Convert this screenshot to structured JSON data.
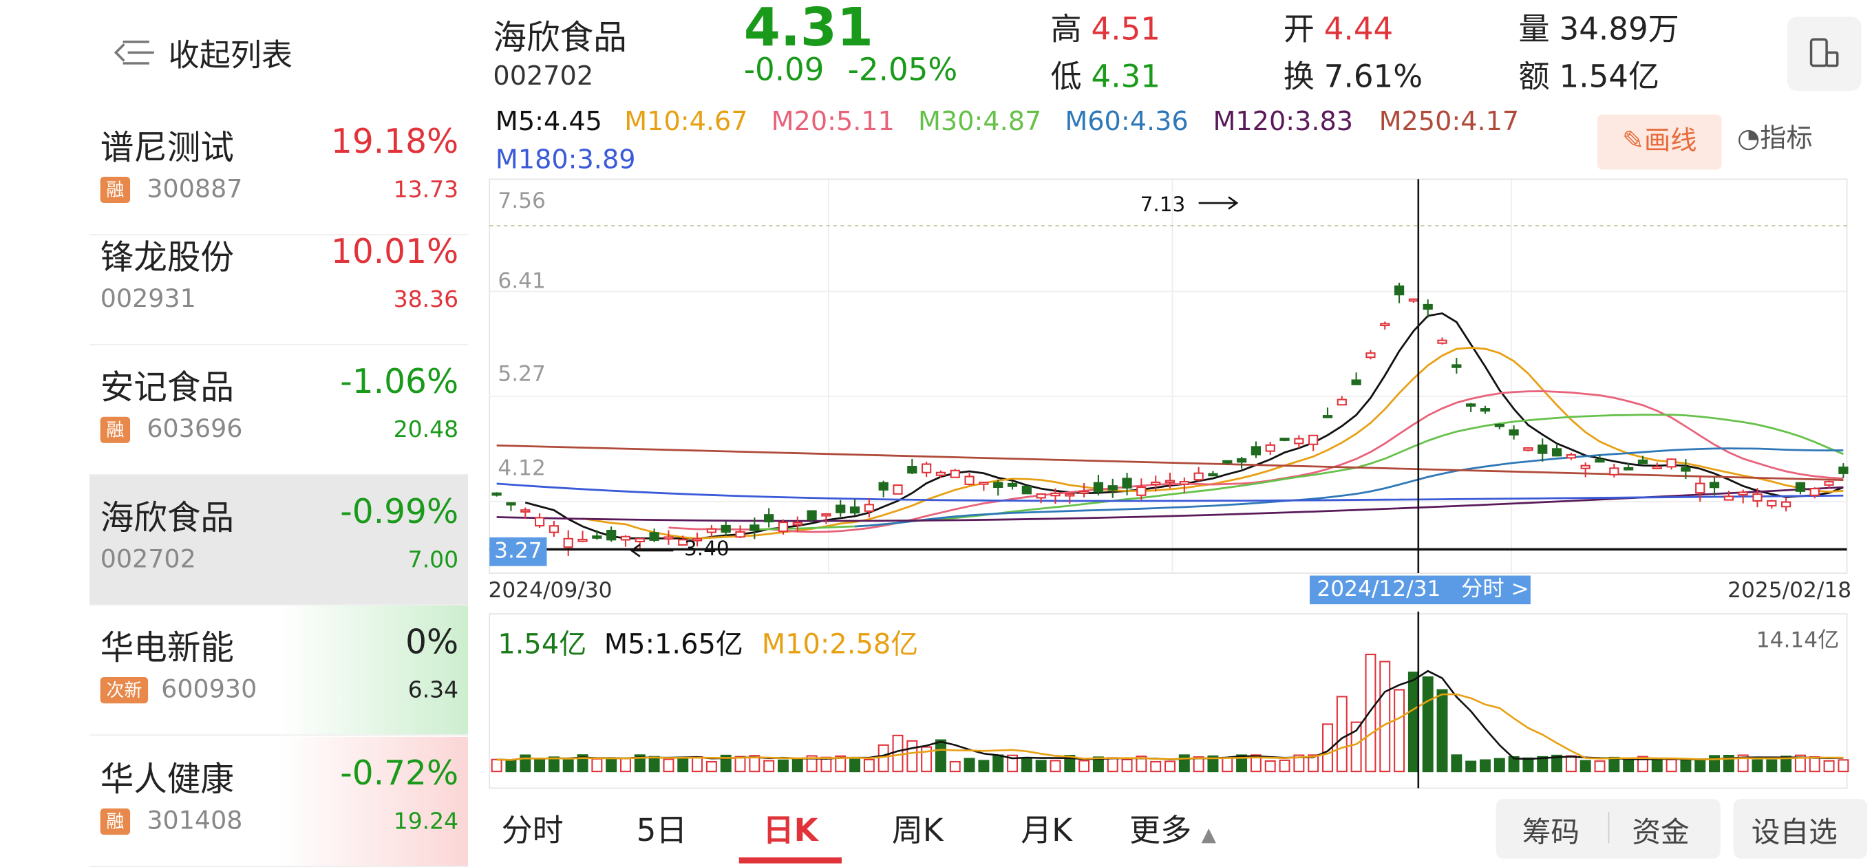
{
  "sidebar": {
    "collapse_label": "收起列表",
    "items": [
      {
        "name": "谱尼测试",
        "pct": "19.18%",
        "badge": "融",
        "code": "300887",
        "price": "13.73",
        "dir": "up",
        "bg": "none"
      },
      {
        "name": "锋龙股份",
        "pct": "10.01%",
        "badge": "",
        "code": "002931",
        "price": "38.36",
        "dir": "up",
        "bg": "none"
      },
      {
        "name": "安记食品",
        "pct": "-1.06%",
        "badge": "融",
        "code": "603696",
        "price": "20.48",
        "dir": "dn",
        "bg": "none"
      },
      {
        "name": "海欣食品",
        "pct": "-0.99%",
        "badge": "",
        "code": "002702",
        "price": "7.00",
        "dir": "dn",
        "bg": "selected"
      },
      {
        "name": "华电新能",
        "pct": "0%",
        "badge": "次新",
        "code": "600930",
        "price": "6.34",
        "dir": "flat",
        "bg": "green"
      },
      {
        "name": "华人健康",
        "pct": "-0.72%",
        "badge": "融",
        "code": "301408",
        "price": "19.24",
        "dir": "dn",
        "bg": "red"
      }
    ]
  },
  "header": {
    "name": "海欣食品",
    "code": "002702",
    "price": "4.31",
    "change": "-0.09",
    "change_pct": "-2.05%",
    "high_label": "高",
    "high": "4.51",
    "low_label": "低",
    "low": "4.31",
    "open_label": "开",
    "open": "4.44",
    "turnover_label": "换",
    "turnover": "7.61%",
    "volume_label": "量",
    "volume": "34.89万",
    "amount_label": "额",
    "amount": "1.54亿"
  },
  "ma_legend": [
    {
      "text": "M5:4.45",
      "color": "#111111"
    },
    {
      "text": "M10:4.67",
      "color": "#e8a013"
    },
    {
      "text": "M20:5.11",
      "color": "#e8627a"
    },
    {
      "text": "M30:4.87",
      "color": "#66c14a"
    },
    {
      "text": "M60:4.36",
      "color": "#2f78b8"
    },
    {
      "text": "M120:3.83",
      "color": "#5a1a5a"
    },
    {
      "text": "M250:4.17",
      "color": "#b04a3a"
    },
    {
      "text": "M180:3.89",
      "color": "#3a5ad8"
    }
  ],
  "tools": {
    "draw_label": "画线",
    "indicator_label": "指标"
  },
  "chart": {
    "y_ticks": [
      "7.56",
      "6.41",
      "5.27",
      "4.12"
    ],
    "high_mark": "7.13",
    "low_mark": "3.40",
    "low_tag": "3.27",
    "date_start": "2024/09/30",
    "date_selected": "2024/12/31",
    "date_selected_link": "分时 >",
    "date_end": "2025/02/18"
  },
  "volume": {
    "current": "1.54亿",
    "m5": "M5:1.65亿",
    "m10": "M10:2.58亿",
    "max_label": "14.14亿"
  },
  "tabs": [
    "分时",
    "5日",
    "日K",
    "周K",
    "月K",
    "更多"
  ],
  "active_tab": "日K",
  "buttons": [
    "筹码",
    "资金",
    "设自选"
  ],
  "colors": {
    "up": "#e0333a",
    "down": "#1a9a1a",
    "accent": "#5b9be6"
  }
}
